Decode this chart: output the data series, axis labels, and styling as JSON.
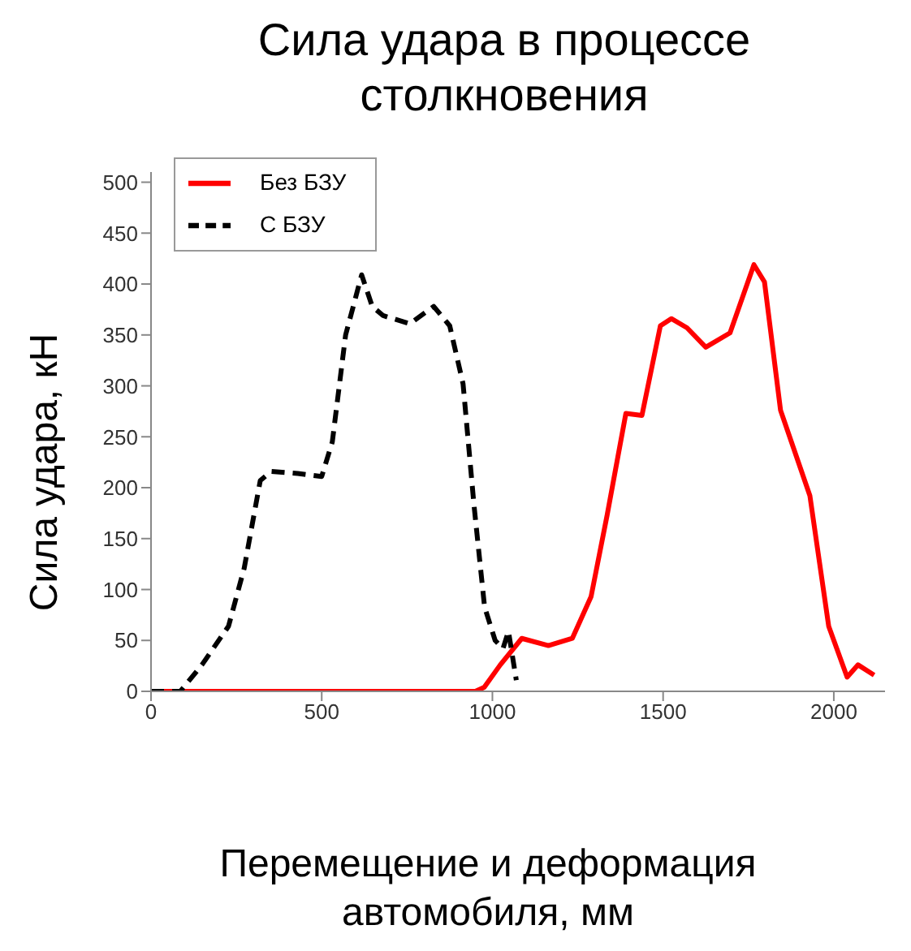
{
  "chart_data": {
    "type": "line",
    "title": "Сила удара в процессе столкновения",
    "xlabel": "Перемещение и деформация автомобиля, мм",
    "ylabel": "Сила удара, кН",
    "xlim": [
      0,
      2150
    ],
    "xticks": [
      0,
      500,
      1000,
      1500,
      2000
    ],
    "ylim": [
      0,
      510
    ],
    "yticks": [
      0,
      50,
      100,
      150,
      200,
      250,
      300,
      350,
      400,
      450,
      500
    ],
    "grid": false,
    "legend": "top left",
    "marker": "none",
    "series": [
      {
        "name": "Без БЗУ",
        "color": "#ff0000",
        "line_style": "solid",
        "x": [
          0,
          950,
          976,
          1023,
          1086,
          1164,
          1234,
          1289,
          1336,
          1391,
          1438,
          1492,
          1524,
          1570,
          1625,
          1696,
          1766,
          1797,
          1844,
          1930,
          1985,
          2039,
          2071,
          2118
        ],
        "values": [
          0,
          0,
          4,
          26,
          52,
          45,
          52,
          93,
          173,
          273,
          271,
          359,
          366,
          357,
          338,
          352,
          419,
          402,
          276,
          192,
          64,
          14,
          26,
          16
        ]
      },
      {
        "name": "С БЗУ",
        "color": "#000000",
        "line_style": "dashed",
        "x": [
          0,
          86,
          149,
          227,
          273,
          320,
          352,
          430,
          500,
          531,
          570,
          617,
          648,
          680,
          758,
          828,
          875,
          914,
          946,
          977,
          1008,
          1031,
          1047,
          1070
        ],
        "values": [
          0,
          0,
          26,
          64,
          121,
          207,
          216,
          214,
          211,
          245,
          350,
          409,
          378,
          369,
          361,
          378,
          359,
          302,
          183,
          83,
          50,
          42,
          59,
          11
        ]
      }
    ]
  }
}
